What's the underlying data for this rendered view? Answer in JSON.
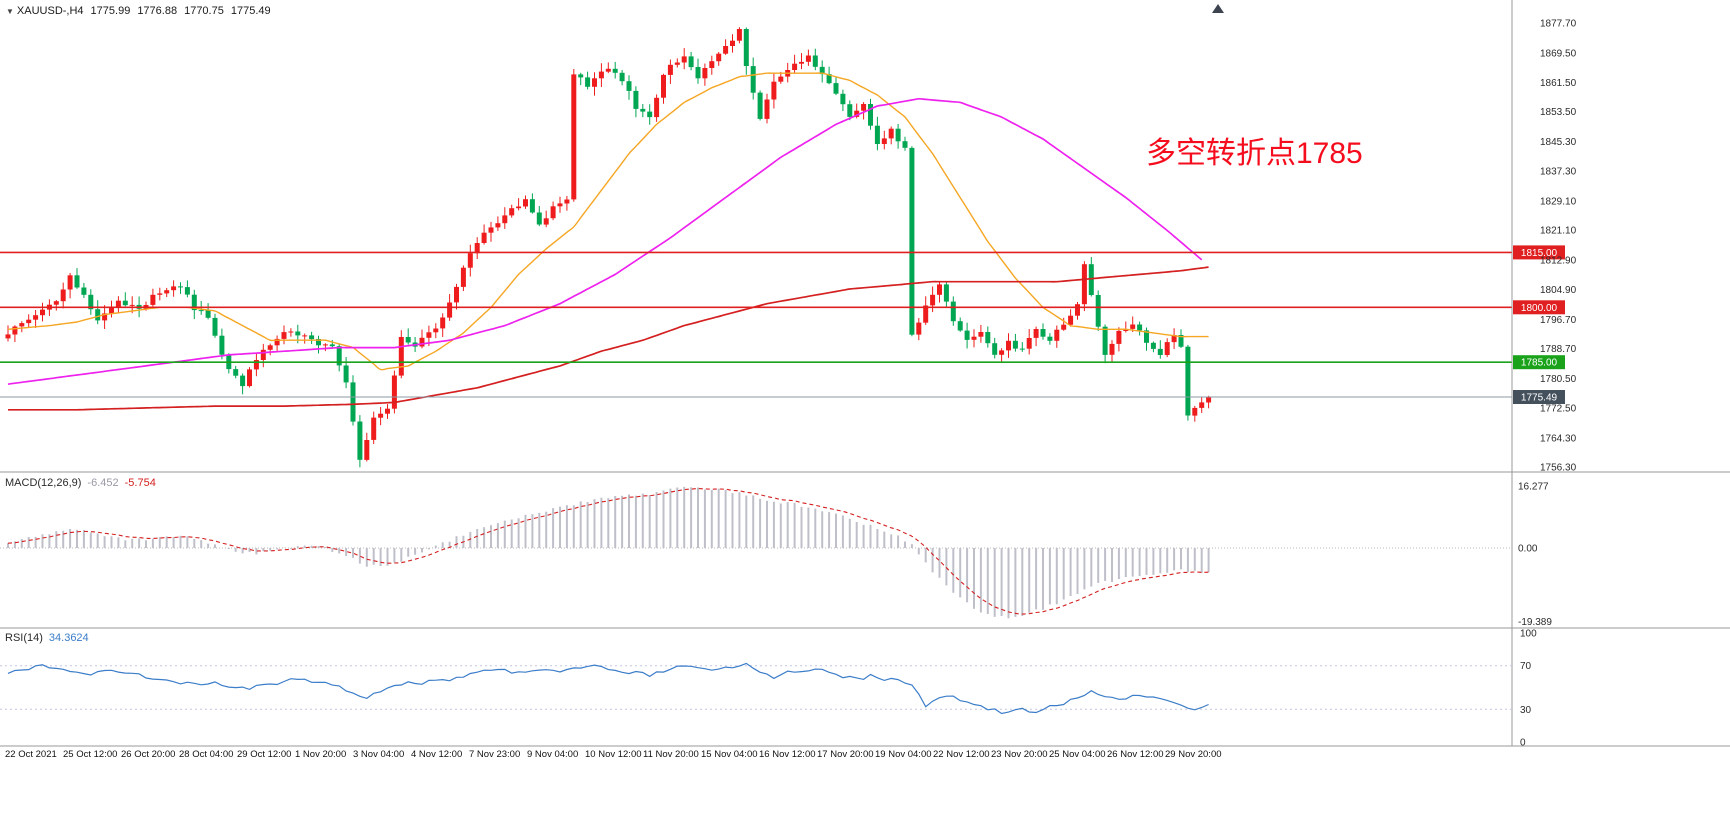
{
  "header": {
    "symbol": "XAUUSD-,H4",
    "open": "1775.99",
    "high": "1776.88",
    "low": "1770.75",
    "close": "1775.49"
  },
  "annotation": {
    "text": "多空转折点1785",
    "color": "#f50d1e"
  },
  "colors": {
    "bull": "#ee1c1c",
    "bear": "#00a651",
    "ma_fast": "#f5a623",
    "ma_mid": "#ee22ee",
    "ma_slow": "#d42020",
    "level_red": "#e02020",
    "level_green": "#1aa31a",
    "price_line_color": "#8b99a6",
    "price_tag": "#44505c",
    "macd_hist": "#bfbfca",
    "macd_signal": "#d42020",
    "rsi_line": "#3b7dc8",
    "axis_text": "#2b2b2b",
    "separator": "#9a9a9a"
  },
  "levels": [
    {
      "label": "1815.00",
      "price": 1815.0,
      "color": "#e02020",
      "kind": "resistance"
    },
    {
      "label": "1800.00",
      "price": 1800.0,
      "color": "#e02020",
      "kind": "resistance"
    },
    {
      "label": "1785.00",
      "price": 1785.0,
      "color": "#1aa31a",
      "kind": "pivot"
    },
    {
      "label": "1775.49",
      "price": 1775.49,
      "color": "#44505c",
      "kind": "current-price"
    }
  ],
  "price_axis": [
    "1877.70",
    "1869.50",
    "1861.50",
    "1853.50",
    "1845.30",
    "1837.30",
    "1829.10",
    "1821.10",
    "1812.90",
    "1804.90",
    "1796.70",
    "1788.70",
    "1780.50",
    "1772.50",
    "1764.30",
    "1756.30"
  ],
  "macd_panel": {
    "label": "MACD(12,26,9)",
    "value1": "-6.452",
    "value2": "-5.754",
    "axis": [
      "16.277",
      "0.00",
      "-19.389"
    ]
  },
  "rsi_panel": {
    "label": "RSI(14)",
    "value": "34.3624",
    "axis": [
      "100",
      "70",
      "30",
      "0"
    ]
  },
  "time_axis": [
    "22 Oct 2021",
    "25 Oct 12:00",
    "26 Oct 20:00",
    "28 Oct 04:00",
    "29 Oct 12:00",
    "1 Nov 20:00",
    "3 Nov 04:00",
    "4 Nov 12:00",
    "7 Nov 23:00",
    "9 Nov 04:00",
    "10 Nov 12:00",
    "11 Nov 20:00",
    "15 Nov 04:00",
    "16 Nov 12:00",
    "17 Nov 20:00",
    "19 Nov 04:00",
    "22 Nov 12:00",
    "23 Nov 20:00",
    "25 Nov 04:00",
    "26 Nov 12:00",
    "29 Nov 20:00"
  ],
  "chart_data": {
    "type": "candlestick",
    "symbol": "XAUUSD",
    "timeframe": "H4",
    "last_ohlc": {
      "open": 1775.99,
      "high": 1776.88,
      "low": 1770.75,
      "close": 1775.49
    },
    "key_levels": [
      1815.0,
      1800.0,
      1785.0
    ],
    "y_axis_range": [
      1753.5,
      1884.0
    ],
    "n_candles": 175,
    "price_path_anchors": [
      [
        0,
        1791
      ],
      [
        4,
        1797
      ],
      [
        8,
        1801
      ],
      [
        10,
        1808
      ],
      [
        12,
        1804
      ],
      [
        14,
        1796
      ],
      [
        17,
        1802
      ],
      [
        20,
        1800
      ],
      [
        23,
        1804
      ],
      [
        26,
        1806
      ],
      [
        28,
        1800
      ],
      [
        30,
        1797
      ],
      [
        33,
        1783
      ],
      [
        35,
        1779
      ],
      [
        38,
        1789
      ],
      [
        42,
        1794
      ],
      [
        45,
        1791
      ],
      [
        48,
        1789
      ],
      [
        50,
        1779
      ],
      [
        52,
        1759
      ],
      [
        54,
        1770
      ],
      [
        56,
        1772
      ],
      [
        58,
        1792
      ],
      [
        60,
        1790
      ],
      [
        63,
        1794
      ],
      [
        66,
        1806
      ],
      [
        68,
        1815
      ],
      [
        70,
        1820
      ],
      [
        73,
        1825
      ],
      [
        76,
        1829
      ],
      [
        78,
        1822
      ],
      [
        80,
        1827
      ],
      [
        82,
        1829
      ],
      [
        83,
        1864
      ],
      [
        85,
        1861
      ],
      [
        88,
        1866
      ],
      [
        90,
        1862
      ],
      [
        92,
        1855
      ],
      [
        94,
        1852
      ],
      [
        96,
        1864
      ],
      [
        99,
        1869
      ],
      [
        101,
        1863
      ],
      [
        103,
        1867
      ],
      [
        105,
        1871
      ],
      [
        107,
        1876
      ],
      [
        108,
        1866
      ],
      [
        110,
        1851
      ],
      [
        112,
        1862
      ],
      [
        115,
        1866
      ],
      [
        117,
        1869
      ],
      [
        119,
        1863
      ],
      [
        121,
        1858
      ],
      [
        123,
        1852
      ],
      [
        125,
        1856
      ],
      [
        127,
        1844
      ],
      [
        129,
        1849
      ],
      [
        131,
        1843
      ],
      [
        132,
        1792
      ],
      [
        134,
        1801
      ],
      [
        136,
        1806
      ],
      [
        138,
        1797
      ],
      [
        140,
        1791
      ],
      [
        142,
        1794
      ],
      [
        144,
        1787
      ],
      [
        146,
        1791
      ],
      [
        148,
        1788
      ],
      [
        150,
        1794
      ],
      [
        152,
        1791
      ],
      [
        154,
        1796
      ],
      [
        156,
        1801
      ],
      [
        157,
        1812
      ],
      [
        159,
        1794
      ],
      [
        160,
        1787
      ],
      [
        162,
        1793
      ],
      [
        164,
        1796
      ],
      [
        166,
        1790
      ],
      [
        168,
        1787
      ],
      [
        170,
        1793
      ],
      [
        171,
        1789
      ],
      [
        172,
        1771
      ],
      [
        174,
        1774
      ],
      [
        175,
        1775.49
      ]
    ],
    "ma_fast_anchors": [
      [
        0,
        1794
      ],
      [
        6,
        1795
      ],
      [
        10,
        1796
      ],
      [
        14,
        1798
      ],
      [
        18,
        1799
      ],
      [
        22,
        1800
      ],
      [
        26,
        1800
      ],
      [
        30,
        1799
      ],
      [
        34,
        1795
      ],
      [
        38,
        1791
      ],
      [
        42,
        1791
      ],
      [
        46,
        1791
      ],
      [
        50,
        1789
      ],
      [
        54,
        1783
      ],
      [
        58,
        1784
      ],
      [
        62,
        1788
      ],
      [
        66,
        1793
      ],
      [
        70,
        1800
      ],
      [
        74,
        1809
      ],
      [
        78,
        1816
      ],
      [
        82,
        1822
      ],
      [
        86,
        1832
      ],
      [
        90,
        1842
      ],
      [
        94,
        1850
      ],
      [
        98,
        1856
      ],
      [
        102,
        1860
      ],
      [
        106,
        1863
      ],
      [
        110,
        1864
      ],
      [
        114,
        1864
      ],
      [
        118,
        1864
      ],
      [
        122,
        1862
      ],
      [
        126,
        1858
      ],
      [
        130,
        1852
      ],
      [
        134,
        1842
      ],
      [
        138,
        1830
      ],
      [
        142,
        1818
      ],
      [
        146,
        1808
      ],
      [
        150,
        1800
      ],
      [
        154,
        1795
      ],
      [
        158,
        1794
      ],
      [
        162,
        1794
      ],
      [
        166,
        1793
      ],
      [
        170,
        1792
      ],
      [
        174,
        1792
      ]
    ],
    "ma_mid_anchors": [
      [
        0,
        1779
      ],
      [
        8,
        1781
      ],
      [
        16,
        1783
      ],
      [
        24,
        1785
      ],
      [
        32,
        1787
      ],
      [
        40,
        1788
      ],
      [
        48,
        1789
      ],
      [
        56,
        1789
      ],
      [
        64,
        1791
      ],
      [
        72,
        1795
      ],
      [
        80,
        1801
      ],
      [
        88,
        1809
      ],
      [
        96,
        1819
      ],
      [
        104,
        1830
      ],
      [
        112,
        1841
      ],
      [
        120,
        1850
      ],
      [
        126,
        1855
      ],
      [
        132,
        1857
      ],
      [
        138,
        1856
      ],
      [
        144,
        1852
      ],
      [
        150,
        1846
      ],
      [
        156,
        1838
      ],
      [
        162,
        1830
      ],
      [
        168,
        1821
      ],
      [
        173,
        1813
      ]
    ],
    "ma_slow_anchors": [
      [
        0,
        1772
      ],
      [
        10,
        1772
      ],
      [
        20,
        1772.5
      ],
      [
        30,
        1773
      ],
      [
        40,
        1773
      ],
      [
        50,
        1773.5
      ],
      [
        56,
        1774
      ],
      [
        62,
        1776
      ],
      [
        68,
        1778
      ],
      [
        74,
        1781
      ],
      [
        80,
        1784
      ],
      [
        86,
        1788
      ],
      [
        92,
        1791
      ],
      [
        98,
        1795
      ],
      [
        104,
        1798
      ],
      [
        110,
        1801
      ],
      [
        116,
        1803
      ],
      [
        122,
        1805
      ],
      [
        128,
        1806
      ],
      [
        134,
        1807
      ],
      [
        140,
        1807
      ],
      [
        146,
        1807
      ],
      [
        152,
        1807
      ],
      [
        158,
        1808
      ],
      [
        164,
        1809
      ],
      [
        170,
        1810
      ],
      [
        174,
        1811
      ]
    ],
    "macd": {
      "params": "12,26,9",
      "last_macd": -6.452,
      "last_signal": -5.754,
      "range": [
        -19.389,
        16.277
      ],
      "macd_anchors": [
        [
          0,
          1.5
        ],
        [
          4,
          3
        ],
        [
          8,
          4.5
        ],
        [
          10,
          5
        ],
        [
          14,
          3.5
        ],
        [
          18,
          2
        ],
        [
          22,
          2.5
        ],
        [
          26,
          3
        ],
        [
          30,
          1
        ],
        [
          34,
          -1.5
        ],
        [
          38,
          -1
        ],
        [
          42,
          0.5
        ],
        [
          46,
          0
        ],
        [
          50,
          -3
        ],
        [
          52,
          -5
        ],
        [
          56,
          -4
        ],
        [
          60,
          -1
        ],
        [
          64,
          2
        ],
        [
          68,
          5
        ],
        [
          72,
          7.5
        ],
        [
          76,
          9
        ],
        [
          80,
          10.5
        ],
        [
          84,
          12.5
        ],
        [
          88,
          13.5
        ],
        [
          92,
          14
        ],
        [
          96,
          15.5
        ],
        [
          100,
          16
        ],
        [
          104,
          15
        ],
        [
          108,
          13.5
        ],
        [
          112,
          12
        ],
        [
          116,
          11
        ],
        [
          120,
          9
        ],
        [
          124,
          6.5
        ],
        [
          128,
          4
        ],
        [
          131,
          1
        ],
        [
          134,
          -6
        ],
        [
          137,
          -12
        ],
        [
          140,
          -16
        ],
        [
          143,
          -18.5
        ],
        [
          146,
          -18
        ],
        [
          149,
          -16.5
        ],
        [
          152,
          -14.5
        ],
        [
          155,
          -12
        ],
        [
          158,
          -9.5
        ],
        [
          161,
          -8
        ],
        [
          164,
          -7
        ],
        [
          167,
          -6.5
        ],
        [
          170,
          -6
        ],
        [
          174,
          -6.45
        ]
      ]
    },
    "rsi": {
      "period": 14,
      "last_value": 34.3624,
      "range": [
        0,
        100
      ],
      "guide_levels": [
        70,
        30
      ],
      "rsi_anchors": [
        [
          0,
          64
        ],
        [
          3,
          68
        ],
        [
          6,
          70
        ],
        [
          9,
          66
        ],
        [
          12,
          62
        ],
        [
          15,
          65
        ],
        [
          18,
          63
        ],
        [
          21,
          58
        ],
        [
          24,
          55
        ],
        [
          27,
          52
        ],
        [
          30,
          56
        ],
        [
          33,
          48
        ],
        [
          36,
          50
        ],
        [
          39,
          54
        ],
        [
          42,
          58
        ],
        [
          45,
          55
        ],
        [
          48,
          50
        ],
        [
          50,
          45
        ],
        [
          52,
          40
        ],
        [
          54,
          48
        ],
        [
          56,
          50
        ],
        [
          58,
          57
        ],
        [
          60,
          54
        ],
        [
          63,
          56
        ],
        [
          66,
          60
        ],
        [
          68,
          63
        ],
        [
          70,
          66
        ],
        [
          73,
          64
        ],
        [
          76,
          67
        ],
        [
          79,
          64
        ],
        [
          82,
          66
        ],
        [
          84,
          71
        ],
        [
          87,
          68
        ],
        [
          90,
          64
        ],
        [
          93,
          62
        ],
        [
          96,
          67
        ],
        [
          99,
          70
        ],
        [
          102,
          66
        ],
        [
          105,
          70
        ],
        [
          107,
          73
        ],
        [
          109,
          63
        ],
        [
          111,
          60
        ],
        [
          113,
          64
        ],
        [
          115,
          66
        ],
        [
          117,
          68
        ],
        [
          119,
          64
        ],
        [
          121,
          61
        ],
        [
          123,
          58
        ],
        [
          125,
          60
        ],
        [
          127,
          55
        ],
        [
          129,
          58
        ],
        [
          131,
          54
        ],
        [
          133,
          34
        ],
        [
          135,
          40
        ],
        [
          137,
          42
        ],
        [
          139,
          36
        ],
        [
          141,
          32
        ],
        [
          143,
          29
        ],
        [
          145,
          26
        ],
        [
          147,
          31
        ],
        [
          149,
          28
        ],
        [
          151,
          33
        ],
        [
          153,
          36
        ],
        [
          155,
          39
        ],
        [
          157,
          49
        ],
        [
          159,
          42
        ],
        [
          161,
          38
        ],
        [
          163,
          43
        ],
        [
          165,
          41
        ],
        [
          167,
          38
        ],
        [
          169,
          36
        ],
        [
          171,
          33
        ],
        [
          172,
          29
        ],
        [
          174,
          34.36
        ]
      ]
    }
  }
}
